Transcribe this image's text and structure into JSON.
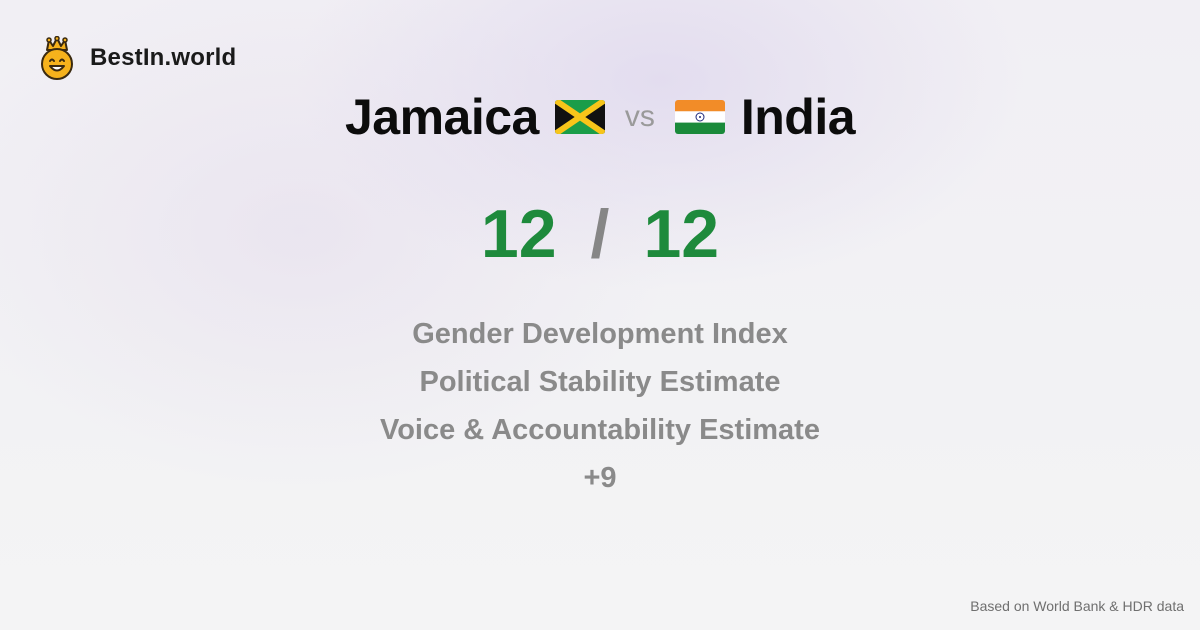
{
  "brand": {
    "name": "BestIn.world",
    "logo_icon": "crown-smiley-icon"
  },
  "comparison": {
    "left": {
      "country": "Jamaica",
      "flag_icon": "jamaica-flag-icon",
      "score": "12"
    },
    "separator": "vs",
    "right": {
      "country": "India",
      "flag_icon": "india-flag-icon",
      "score": "12"
    },
    "score_separator": "/"
  },
  "metrics": [
    "Gender Development Index",
    "Political Stability Estimate",
    "Voice & Accountability Estimate",
    "+9"
  ],
  "footer": {
    "source": "Based on World Bank & HDR data"
  },
  "colors": {
    "score": "#1e8a3c",
    "metric_text": "#8a8a8a",
    "title_text": "#0c0c0c"
  }
}
